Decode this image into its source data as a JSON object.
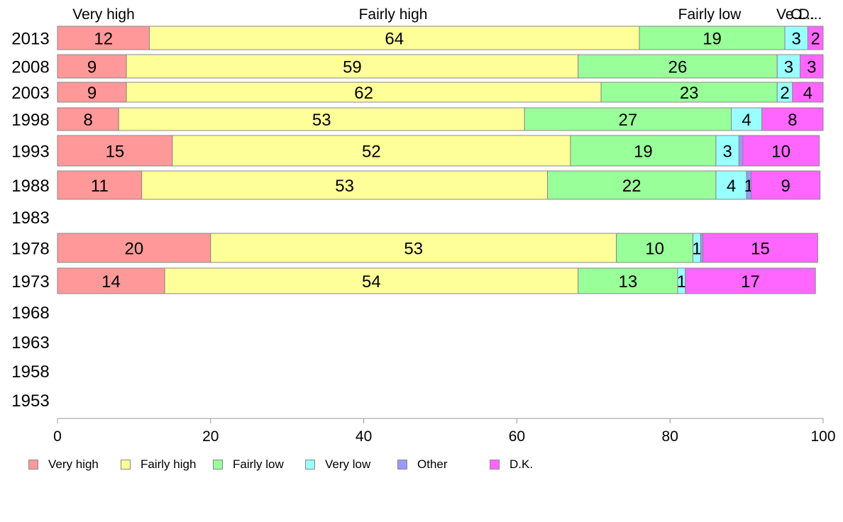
{
  "chart_data": {
    "type": "bar",
    "orientation": "horizontal",
    "stacked": true,
    "categories": [
      "2013",
      "2008",
      "2003",
      "1998",
      "1993",
      "1988",
      "1983",
      "1978",
      "1973",
      "1968",
      "1963",
      "1958",
      "1953"
    ],
    "series": [
      {
        "name": "Very high",
        "color": "#ff9999",
        "values": [
          12,
          9,
          9,
          8,
          15,
          11,
          null,
          20,
          14,
          null,
          null,
          null,
          null
        ]
      },
      {
        "name": "Fairly high",
        "color": "#ffff99",
        "values": [
          64,
          59,
          62,
          53,
          52,
          53,
          null,
          53,
          54,
          null,
          null,
          null,
          null
        ]
      },
      {
        "name": "Fairly low",
        "color": "#99ff99",
        "values": [
          19,
          26,
          23,
          27,
          19,
          22,
          null,
          10,
          13,
          null,
          null,
          null,
          null
        ]
      },
      {
        "name": "Very low",
        "color": "#99ffff",
        "values": [
          3,
          3,
          2,
          4,
          3,
          4,
          null,
          1,
          1,
          null,
          null,
          null,
          null
        ]
      },
      {
        "name": "Other",
        "color": "#9999ff",
        "values": [
          0,
          0,
          0,
          0,
          0.5,
          0.6,
          null,
          0.3,
          0,
          null,
          null,
          null,
          null
        ]
      },
      {
        "name": "D.K.",
        "color": "#ff66ff",
        "values": [
          2,
          3,
          4,
          8,
          10,
          9,
          null,
          15,
          17,
          null,
          null,
          null,
          null
        ]
      }
    ],
    "data_labels": [
      [
        "12",
        "64",
        "19",
        "3",
        "",
        "2"
      ],
      [
        "9",
        "59",
        "26",
        "3",
        "",
        "3"
      ],
      [
        "9",
        "62",
        "23",
        "2",
        "",
        "4"
      ],
      [
        "8",
        "53",
        "27",
        "4",
        "",
        "8"
      ],
      [
        "15",
        "52",
        "19",
        "3",
        "",
        "10"
      ],
      [
        "11",
        "53",
        "22",
        "4",
        "1",
        "9"
      ],
      [],
      [
        "20",
        "53",
        "10",
        "1",
        "",
        "15"
      ],
      [
        "14",
        "54",
        "13",
        "1",
        "",
        "17"
      ],
      [],
      [],
      [],
      []
    ],
    "top_labels": [
      "Very high",
      "Fairly high",
      "Fairly low",
      "Ve...",
      "O...",
      "D..."
    ],
    "x_ticks": [
      "0",
      "20",
      "40",
      "60",
      "80",
      "100"
    ],
    "xlim": [
      0,
      100
    ],
    "grid": false,
    "legend_position": "bottom",
    "title": "",
    "xlabel": "",
    "ylabel": ""
  }
}
